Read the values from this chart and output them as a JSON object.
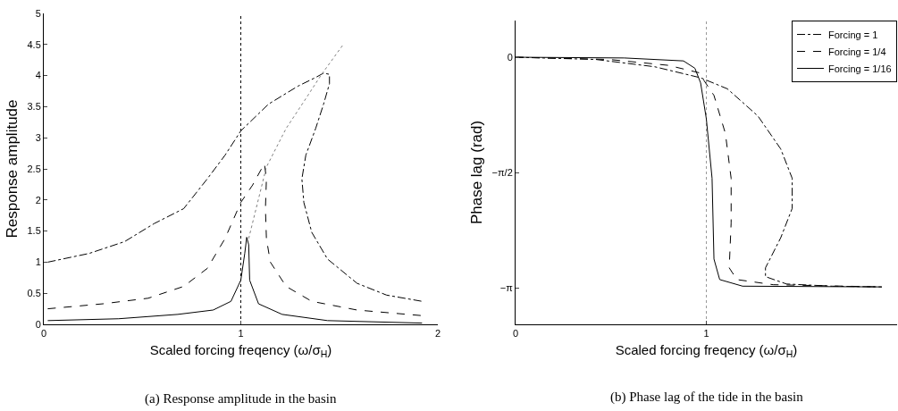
{
  "chart_data": [
    {
      "type": "line",
      "xlabel": "Scaled forcing freqency (ω/σ$_{H}$)",
      "ylabel": "Response amplitude",
      "xlim": [
        0,
        2
      ],
      "ylim": [
        0,
        5
      ],
      "xticks": [
        0,
        1,
        2
      ],
      "yticks": [
        0,
        0.5,
        1,
        1.5,
        2,
        2.5,
        3,
        3.5,
        4,
        4.5,
        5
      ],
      "series": [
        {
          "color": "#000000",
          "line_style": "dashdot",
          "x": [
            0.02,
            0.23,
            0.41,
            0.56,
            0.71,
            0.83,
            0.92,
            1.0,
            1.14,
            1.29,
            1.38,
            1.42,
            1.45,
            1.45,
            1.42,
            1.38,
            1.33,
            1.31,
            1.32,
            1.36,
            1.44,
            1.59,
            1.74,
            1.92
          ],
          "values": [
            1.0,
            1.14,
            1.33,
            1.62,
            1.86,
            2.34,
            2.72,
            3.11,
            3.54,
            3.83,
            3.97,
            4.04,
            4.02,
            3.87,
            3.54,
            3.15,
            2.72,
            2.34,
            1.96,
            1.48,
            1.05,
            0.66,
            0.47,
            0.37
          ]
        },
        {
          "color": "#000000",
          "line_style": "dashed",
          "x": [
            0.02,
            0.3,
            0.53,
            0.71,
            0.83,
            0.92,
            1.0,
            1.06,
            1.11,
            1.12,
            1.13,
            1.125,
            1.13,
            1.15,
            1.23,
            1.36,
            1.59,
            1.92
          ],
          "values": [
            0.25,
            0.33,
            0.42,
            0.61,
            0.9,
            1.38,
            1.96,
            2.24,
            2.53,
            2.58,
            2.34,
            1.86,
            1.38,
            1.0,
            0.61,
            0.37,
            0.23,
            0.14
          ]
        },
        {
          "color": "#000000",
          "line_style": "solid",
          "x": [
            0.02,
            0.38,
            0.68,
            0.86,
            0.95,
            1.0,
            1.02,
            1.03,
            1.04,
            1.045,
            1.09,
            1.21,
            1.44,
            1.92
          ],
          "values": [
            0.06,
            0.09,
            0.16,
            0.23,
            0.37,
            0.71,
            1.14,
            1.4,
            1.28,
            0.71,
            0.33,
            0.16,
            0.06,
            0.02
          ]
        },
        {
          "color": "#808080",
          "line_style": "dotted",
          "x": [
            1.04,
            1.13,
            1.23,
            1.33,
            1.41,
            1.52
          ],
          "values": [
            1.38,
            2.53,
            3.15,
            3.63,
            4.02,
            4.5
          ]
        }
      ],
      "ref_lines": [
        {
          "axis": "x",
          "value": 1,
          "color": "#000000",
          "line_style": "dotted"
        }
      ],
      "annotations": [
        "(a) Response amplitude in the basin"
      ]
    },
    {
      "type": "line",
      "xlabel": "Scaled forcing freqency (ω/σ$_{H}$)",
      "ylabel": "Phase lag (rad)",
      "xlim": [
        0,
        2
      ],
      "ylim": [
        -3.64,
        0.5
      ],
      "xticks": [
        0,
        1
      ],
      "yticks": [
        {
          "value": -3.1416,
          "label": "−π"
        },
        {
          "value": -1.5708,
          "label": "−π/2"
        },
        0
      ],
      "legend": "top right",
      "series": [
        {
          "name": "Forcing = 1",
          "color": "#000000",
          "line_style": "dashdot",
          "x": [
            0.0,
            0.42,
            0.73,
            0.97,
            1.11,
            1.27,
            1.39,
            1.45,
            1.45,
            1.39,
            1.31,
            1.31,
            1.42,
            1.66,
            1.92
          ],
          "values": [
            0,
            -0.03,
            -0.13,
            -0.28,
            -0.43,
            -0.8,
            -1.25,
            -1.65,
            -2.06,
            -2.46,
            -2.87,
            -2.99,
            -3.09,
            -3.12,
            -3.13
          ]
        },
        {
          "name": "Forcing = 1/4",
          "color": "#000000",
          "line_style": "dashed",
          "x": [
            0.0,
            0.49,
            0.8,
            0.96,
            1.04,
            1.1,
            1.13,
            1.13,
            1.12,
            1.16,
            1.35,
            1.92
          ],
          "values": [
            0,
            -0.03,
            -0.11,
            -0.21,
            -0.52,
            -1.04,
            -1.65,
            -2.26,
            -2.87,
            -3.03,
            -3.1,
            -3.13
          ]
        },
        {
          "name": "Forcing = 1/16",
          "color": "#000000",
          "line_style": "solid",
          "x": [
            0.01,
            0.57,
            0.88,
            0.94,
            0.97,
            1.0,
            1.03,
            1.04,
            1.07,
            1.19,
            1.92
          ],
          "values": [
            0,
            -0.01,
            -0.05,
            -0.15,
            -0.35,
            -0.84,
            -1.65,
            -2.75,
            -3.03,
            -3.12,
            -3.13
          ]
        }
      ],
      "ref_lines": [
        {
          "axis": "x",
          "value": 1,
          "color": "#999999",
          "line_style": "dotted"
        }
      ],
      "annotations": [
        "(b) Phase lag of the tide in the basin"
      ]
    }
  ]
}
